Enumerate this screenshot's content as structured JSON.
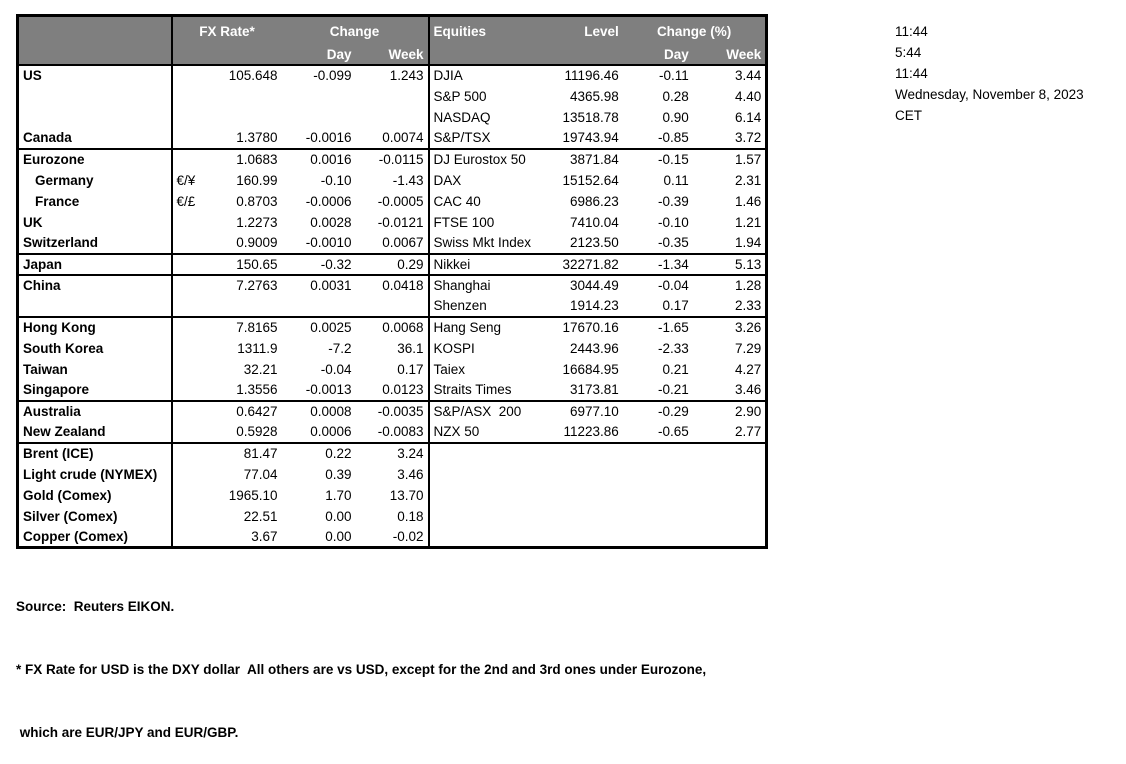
{
  "table": {
    "header": {
      "fx_rate": "FX Rate*",
      "change": "Change",
      "day": "Day",
      "week": "Week",
      "equities": "Equities",
      "level": "Level",
      "change_pct": "Change (%)"
    },
    "rows": [
      {
        "country": "US",
        "pair": "",
        "fx": "105.648",
        "fx_day": "-0.099",
        "fx_week": "1.243",
        "eq": "DJIA",
        "level": "11196.46",
        "eq_day": "-0.11",
        "eq_week": "3.44",
        "indent": false,
        "section": false
      },
      {
        "country": "",
        "pair": "",
        "fx": "",
        "fx_day": "",
        "fx_week": "",
        "eq": "S&P 500",
        "level": "4365.98",
        "eq_day": "0.28",
        "eq_week": "4.40",
        "indent": false,
        "section": false
      },
      {
        "country": "",
        "pair": "",
        "fx": "",
        "fx_day": "",
        "fx_week": "",
        "eq": "NASDAQ",
        "level": "13518.78",
        "eq_day": "0.90",
        "eq_week": "6.14",
        "indent": false,
        "section": false
      },
      {
        "country": "Canada",
        "pair": "",
        "fx": "1.3780",
        "fx_day": "-0.0016",
        "fx_week": "0.0074",
        "eq": "S&P/TSX",
        "level": "19743.94",
        "eq_day": "-0.85",
        "eq_week": "3.72",
        "indent": false,
        "section": false
      },
      {
        "country": "Eurozone",
        "pair": "",
        "fx": "1.0683",
        "fx_day": "0.0016",
        "fx_week": "-0.0115",
        "eq": "DJ Eurostox 50",
        "level": "3871.84",
        "eq_day": "-0.15",
        "eq_week": "1.57",
        "indent": false,
        "section": true
      },
      {
        "country": "Germany",
        "pair": "€/¥",
        "fx": "160.99",
        "fx_day": "-0.10",
        "fx_week": "-1.43",
        "eq": "DAX",
        "level": "15152.64",
        "eq_day": "0.11",
        "eq_week": "2.31",
        "indent": true,
        "section": false
      },
      {
        "country": "France",
        "pair": "€/£",
        "fx": "0.8703",
        "fx_day": "-0.0006",
        "fx_week": "-0.0005",
        "eq": "CAC 40",
        "level": "6986.23",
        "eq_day": "-0.39",
        "eq_week": "1.46",
        "indent": true,
        "section": false
      },
      {
        "country": "UK",
        "pair": "",
        "fx": "1.2273",
        "fx_day": "0.0028",
        "fx_week": "-0.0121",
        "eq": "FTSE 100",
        "level": "7410.04",
        "eq_day": "-0.10",
        "eq_week": "1.21",
        "indent": false,
        "section": false
      },
      {
        "country": "Switzerland",
        "pair": "",
        "fx": "0.9009",
        "fx_day": "-0.0010",
        "fx_week": "0.0067",
        "eq": "Swiss Mkt Index",
        "level": "2123.50",
        "eq_day": "-0.35",
        "eq_week": "1.94",
        "indent": false,
        "section": false
      },
      {
        "country": "Japan",
        "pair": "",
        "fx": "150.65",
        "fx_day": "-0.32",
        "fx_week": "0.29",
        "eq": "Nikkei",
        "level": "32271.82",
        "eq_day": "-1.34",
        "eq_week": "5.13",
        "indent": false,
        "section": true
      },
      {
        "country": "China",
        "pair": "",
        "fx": "7.2763",
        "fx_day": "0.0031",
        "fx_week": "0.0418",
        "eq": "Shanghai",
        "level": "3044.49",
        "eq_day": "-0.04",
        "eq_week": "1.28",
        "indent": false,
        "section": true
      },
      {
        "country": "",
        "pair": "",
        "fx": "",
        "fx_day": "",
        "fx_week": "",
        "eq": "Shenzen",
        "level": "1914.23",
        "eq_day": "0.17",
        "eq_week": "2.33",
        "indent": false,
        "section": false
      },
      {
        "country": "Hong Kong",
        "pair": "",
        "fx": "7.8165",
        "fx_day": "0.0025",
        "fx_week": "0.0068",
        "eq": "Hang Seng",
        "level": "17670.16",
        "eq_day": "-1.65",
        "eq_week": "3.26",
        "indent": false,
        "section": true
      },
      {
        "country": "South Korea",
        "pair": "",
        "fx": "1311.9",
        "fx_day": "-7.2",
        "fx_week": "36.1",
        "eq": "KOSPI",
        "level": "2443.96",
        "eq_day": "-2.33",
        "eq_week": "7.29",
        "indent": false,
        "section": false
      },
      {
        "country": "Taiwan",
        "pair": "",
        "fx": "32.21",
        "fx_day": "-0.04",
        "fx_week": "0.17",
        "eq": "Taiex",
        "level": "16684.95",
        "eq_day": "0.21",
        "eq_week": "4.27",
        "indent": false,
        "section": false
      },
      {
        "country": "Singapore",
        "pair": "",
        "fx": "1.3556",
        "fx_day": "-0.0013",
        "fx_week": "0.0123",
        "eq": "Straits Times",
        "level": "3173.81",
        "eq_day": "-0.21",
        "eq_week": "3.46",
        "indent": false,
        "section": false
      },
      {
        "country": "Australia",
        "pair": "",
        "fx": "0.6427",
        "fx_day": "0.0008",
        "fx_week": "-0.0035",
        "eq": "S&P/ASX  200",
        "level": "6977.10",
        "eq_day": "-0.29",
        "eq_week": "2.90",
        "indent": false,
        "section": true
      },
      {
        "country": "New Zealand",
        "pair": "",
        "fx": "0.5928",
        "fx_day": "0.0006",
        "fx_week": "-0.0083",
        "eq": "NZX 50",
        "level": "11223.86",
        "eq_day": "-0.65",
        "eq_week": "2.77",
        "indent": false,
        "section": false
      },
      {
        "country": "Brent (ICE)",
        "pair": "",
        "fx": "81.47",
        "fx_day": "0.22",
        "fx_week": "3.24",
        "eq": "",
        "level": "",
        "eq_day": "",
        "eq_week": "",
        "indent": false,
        "section": true
      },
      {
        "country": "Light crude (NYMEX)",
        "pair": "",
        "fx": "77.04",
        "fx_day": "0.39",
        "fx_week": "3.46",
        "eq": "",
        "level": "",
        "eq_day": "",
        "eq_week": "",
        "indent": false,
        "section": false
      },
      {
        "country": "Gold (Comex)",
        "pair": "",
        "fx": "1965.10",
        "fx_day": "1.70",
        "fx_week": "13.70",
        "eq": "",
        "level": "",
        "eq_day": "",
        "eq_week": "",
        "indent": false,
        "section": false
      },
      {
        "country": "Silver (Comex)",
        "pair": "",
        "fx": "22.51",
        "fx_day": "0.00",
        "fx_week": "0.18",
        "eq": "",
        "level": "",
        "eq_day": "",
        "eq_week": "",
        "indent": false,
        "section": false
      },
      {
        "country": "Copper (Comex)",
        "pair": "",
        "fx": "3.67",
        "fx_day": "0.00",
        "fx_week": "-0.02",
        "eq": "",
        "level": "",
        "eq_day": "",
        "eq_week": "",
        "indent": false,
        "section": false
      }
    ]
  },
  "times": [
    "11:44",
    "5:44",
    "11:44",
    "Wednesday, November 8, 2023",
    "CET"
  ],
  "footer": {
    "source": "Source:  Reuters EIKON.",
    "note1": "* FX Rate for USD is the DXY dollar  All others are vs USD, except for the 2nd and 3rd ones under Eurozone,",
    "note2": " which are EUR/JPY and EUR/GBP."
  },
  "colors": {
    "header_bg": "#7f7f7f",
    "header_text": "#ffffff",
    "border": "#000000",
    "text": "#000000",
    "page_bg": "#ffffff"
  }
}
